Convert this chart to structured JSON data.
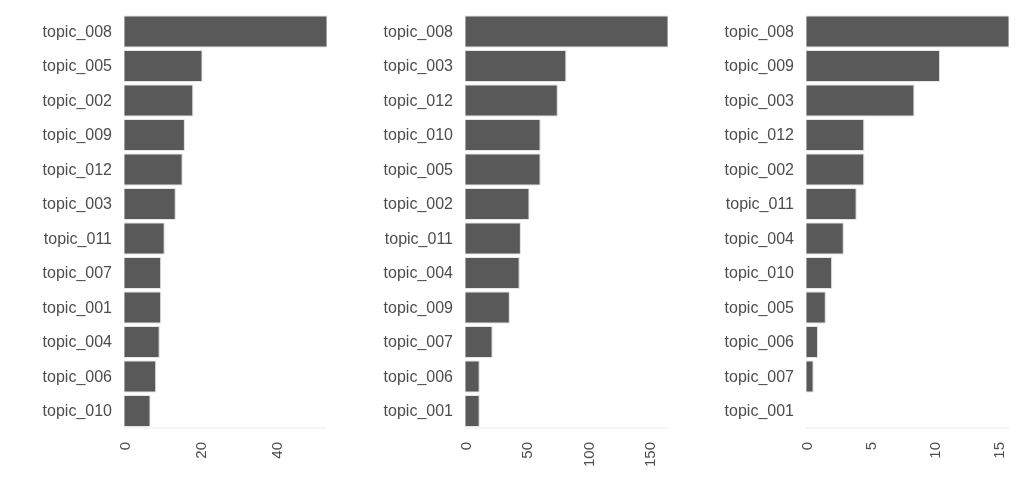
{
  "chart_data": [
    {
      "type": "bar",
      "orientation": "horizontal",
      "categories": [
        "topic_008",
        "topic_005",
        "topic_002",
        "topic_009",
        "topic_012",
        "topic_003",
        "topic_011",
        "topic_007",
        "topic_001",
        "topic_004",
        "topic_006",
        "topic_010"
      ],
      "values": [
        53.1,
        20.4,
        18.0,
        15.8,
        15.2,
        13.4,
        10.5,
        9.6,
        9.6,
        9.2,
        8.3,
        6.8
      ],
      "color": "#595959",
      "xlim": [
        0,
        53.1
      ],
      "xticks": [
        0,
        20,
        40
      ]
    },
    {
      "type": "bar",
      "orientation": "horizontal",
      "categories": [
        "topic_008",
        "topic_003",
        "topic_012",
        "topic_010",
        "topic_005",
        "topic_002",
        "topic_011",
        "topic_004",
        "topic_009",
        "topic_007",
        "topic_006",
        "topic_001"
      ],
      "values": [
        165,
        82,
        75,
        61,
        61,
        52,
        45,
        44,
        36,
        22,
        11.5,
        11.5
      ],
      "color": "#595959",
      "xlim": [
        0,
        165
      ],
      "xticks": [
        0,
        50,
        100,
        150
      ]
    },
    {
      "type": "bar",
      "orientation": "horizontal",
      "categories": [
        "topic_008",
        "topic_009",
        "topic_003",
        "topic_012",
        "topic_002",
        "topic_011",
        "topic_004",
        "topic_010",
        "topic_005",
        "topic_006",
        "topic_007",
        "topic_001"
      ],
      "values": [
        15.8,
        10.4,
        8.4,
        4.5,
        4.5,
        3.9,
        2.9,
        2.0,
        1.5,
        0.9,
        0.55,
        0
      ],
      "color": "#595959",
      "xlim": [
        0,
        15.8
      ],
      "xticks": [
        0,
        5,
        10,
        15
      ]
    }
  ]
}
